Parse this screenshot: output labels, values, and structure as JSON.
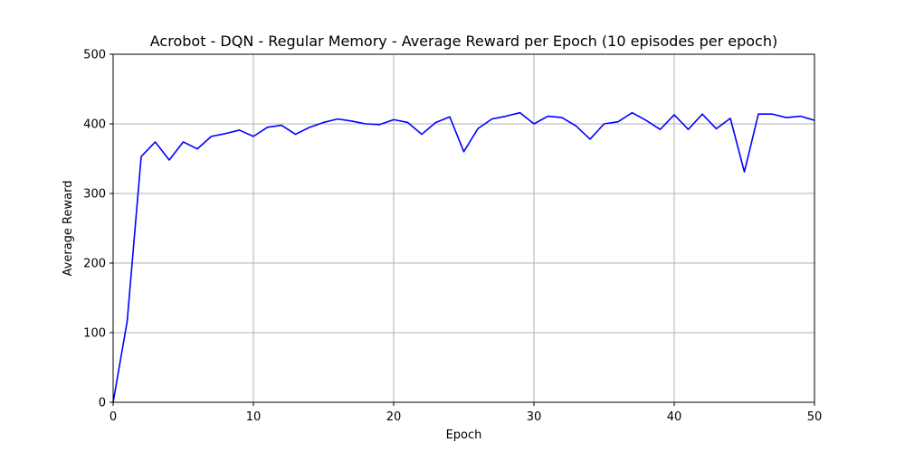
{
  "chart_data": {
    "type": "line",
    "title": "Acrobot - DQN - Regular Memory - Average Reward per Epoch (10 episodes per epoch)",
    "xlabel": "Epoch",
    "ylabel": "Average Reward",
    "xlim": [
      0,
      50
    ],
    "ylim": [
      0,
      500
    ],
    "xticks": [
      "0",
      "10",
      "20",
      "30",
      "40",
      "50"
    ],
    "yticks": [
      "0",
      "100",
      "200",
      "300",
      "400",
      "500"
    ],
    "grid": true,
    "line_color": "#0000ff",
    "series": [
      {
        "x": [
          0,
          1,
          2,
          3,
          4,
          5,
          6,
          7,
          8,
          9,
          10,
          11,
          12,
          13,
          14,
          15,
          16,
          17,
          18,
          19,
          20,
          21,
          22,
          23,
          24,
          25,
          26,
          27,
          28,
          29,
          30,
          31,
          32,
          33,
          34,
          35,
          36,
          37,
          38,
          39,
          40,
          41,
          42,
          43,
          44,
          45,
          46,
          47,
          48,
          49,
          50
        ],
        "values": [
          0,
          116,
          353,
          374,
          348,
          374,
          364,
          382,
          386,
          391,
          382,
          395,
          398,
          385,
          395,
          402,
          407,
          404,
          400,
          399,
          406,
          402,
          385,
          402,
          410,
          360,
          393,
          407,
          411,
          416,
          400,
          411,
          409,
          397,
          378,
          400,
          403,
          416,
          405,
          392,
          413,
          392,
          414,
          393,
          408,
          331,
          414,
          414,
          409,
          411,
          405
        ]
      }
    ]
  }
}
